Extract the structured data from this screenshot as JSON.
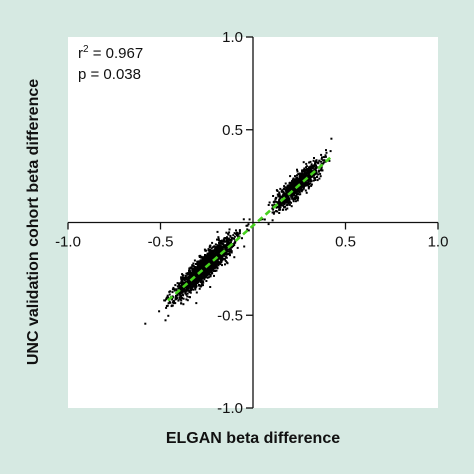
{
  "colors": {
    "background": "#d6e9e2",
    "plot_area": "#ffffff",
    "points": "#000000",
    "fit_line": "#46d11e"
  },
  "chart_data": {
    "type": "scatter",
    "title": "",
    "xlabel": "ELGAN beta difference",
    "ylabel": "UNC validation cohort beta difference",
    "xlim": [
      -1.0,
      1.0
    ],
    "ylim": [
      -1.0,
      1.0
    ],
    "x_ticks": [
      "-1.0",
      "-0.5",
      "0.5",
      "1.0"
    ],
    "x_tick_values": [
      -1.0,
      -0.5,
      0.5,
      1.0
    ],
    "y_ticks": [
      "1.0",
      "0.5",
      "-0.5",
      "-1.0"
    ],
    "y_tick_values": [
      1.0,
      0.5,
      -0.5,
      -1.0
    ],
    "grid": false,
    "axes_through_origin": true,
    "annotations": {
      "r2_prefix": "r",
      "r2_sup": "2",
      "r2_value": " = 0.967",
      "p_text": "p = 0.038"
    },
    "fit_line": {
      "style": "dashed",
      "x": [
        -0.46,
        0.43
      ],
      "y": [
        -0.42,
        0.36
      ]
    },
    "clusters": [
      {
        "name": "negative",
        "center": [
          -0.26,
          -0.24
        ],
        "spread_along": 0.22,
        "spread_across": 0.025,
        "n": 1600
      },
      {
        "name": "positive",
        "center": [
          0.24,
          0.2
        ],
        "spread_along": 0.17,
        "spread_across": 0.022,
        "n": 900
      }
    ]
  }
}
